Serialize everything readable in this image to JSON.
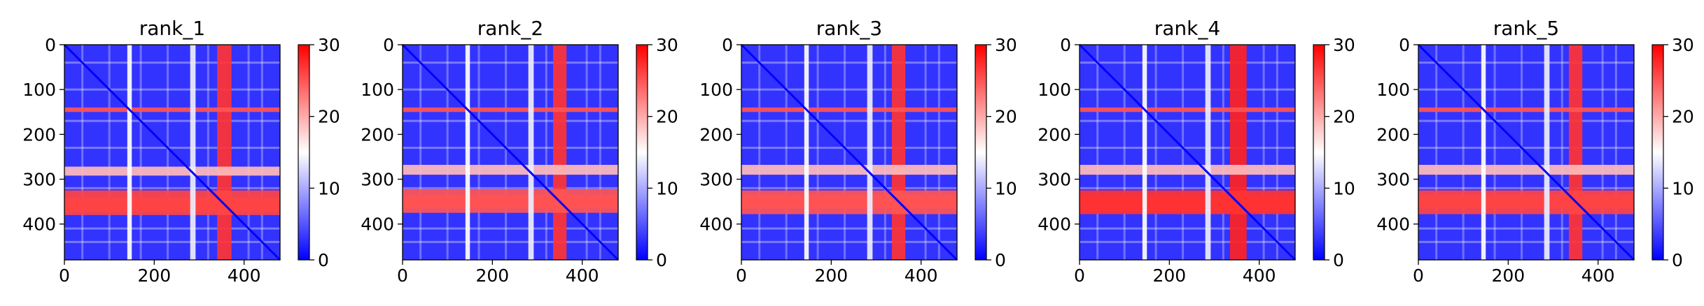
{
  "chart_data": [
    {
      "type": "heatmap",
      "title": "rank_1",
      "x_ticks": [
        0,
        200,
        400
      ],
      "y_ticks": [
        0,
        100,
        200,
        300,
        400
      ],
      "xlim": [
        0,
        480
      ],
      "ylim": [
        480,
        0
      ],
      "colorbar": {
        "range": [
          0,
          30
        ],
        "ticks": [
          0,
          10,
          20,
          30
        ],
        "colors": [
          "#0000ff",
          "#ffffff",
          "#ff0000"
        ]
      },
      "hot_bands": [
        {
          "axis": "both",
          "start": 340,
          "end": 372,
          "value": 27
        },
        {
          "axis": "row",
          "start": 325,
          "end": 380,
          "value": 26
        },
        {
          "axis": "row",
          "start": 140,
          "end": 150,
          "value": 25
        },
        {
          "axis": "row",
          "start": 272,
          "end": 292,
          "value": 19
        },
        {
          "axis": "col",
          "start": 140,
          "end": 150,
          "value": 15
        },
        {
          "axis": "col",
          "start": 280,
          "end": 292,
          "value": 14
        }
      ],
      "cool_value": 3
    },
    {
      "type": "heatmap",
      "title": "rank_2",
      "x_ticks": [
        0,
        200,
        400
      ],
      "y_ticks": [
        0,
        100,
        200,
        300,
        400
      ],
      "xlim": [
        0,
        480
      ],
      "ylim": [
        480,
        0
      ],
      "colorbar": {
        "range": [
          0,
          30
        ],
        "ticks": [
          0,
          10,
          20,
          30
        ],
        "colors": [
          "#0000ff",
          "#ffffff",
          "#ff0000"
        ]
      },
      "hot_bands": [
        {
          "axis": "both",
          "start": 335,
          "end": 365,
          "value": 27
        },
        {
          "axis": "row",
          "start": 322,
          "end": 375,
          "value": 25
        },
        {
          "axis": "row",
          "start": 140,
          "end": 150,
          "value": 25
        },
        {
          "axis": "row",
          "start": 268,
          "end": 290,
          "value": 19
        },
        {
          "axis": "col",
          "start": 140,
          "end": 150,
          "value": 15
        },
        {
          "axis": "col",
          "start": 280,
          "end": 292,
          "value": 14
        }
      ],
      "cool_value": 3
    },
    {
      "type": "heatmap",
      "title": "rank_3",
      "x_ticks": [
        0,
        200,
        400
      ],
      "y_ticks": [
        0,
        100,
        200,
        300,
        400
      ],
      "xlim": [
        0,
        480
      ],
      "ylim": [
        480,
        0
      ],
      "colorbar": {
        "range": [
          0,
          30
        ],
        "ticks": [
          0,
          10,
          20,
          30
        ],
        "colors": [
          "#0000ff",
          "#ffffff",
          "#ff0000"
        ]
      },
      "hot_bands": [
        {
          "axis": "both",
          "start": 335,
          "end": 365,
          "value": 27
        },
        {
          "axis": "row",
          "start": 325,
          "end": 378,
          "value": 25
        },
        {
          "axis": "row",
          "start": 140,
          "end": 150,
          "value": 25
        },
        {
          "axis": "row",
          "start": 268,
          "end": 290,
          "value": 19
        },
        {
          "axis": "col",
          "start": 140,
          "end": 150,
          "value": 15
        },
        {
          "axis": "col",
          "start": 280,
          "end": 292,
          "value": 14
        }
      ],
      "cool_value": 3
    },
    {
      "type": "heatmap",
      "title": "rank_4",
      "x_ticks": [
        0,
        200,
        400
      ],
      "y_ticks": [
        0,
        100,
        200,
        300,
        400
      ],
      "xlim": [
        0,
        480
      ],
      "ylim": [
        480,
        0
      ],
      "colorbar": {
        "range": [
          0,
          30
        ],
        "ticks": [
          0,
          10,
          20,
          30
        ],
        "colors": [
          "#0000ff",
          "#ffffff",
          "#ff0000"
        ]
      },
      "hot_bands": [
        {
          "axis": "both",
          "start": 335,
          "end": 372,
          "value": 28
        },
        {
          "axis": "row",
          "start": 325,
          "end": 378,
          "value": 27
        },
        {
          "axis": "row",
          "start": 140,
          "end": 150,
          "value": 25
        },
        {
          "axis": "row",
          "start": 268,
          "end": 290,
          "value": 19
        },
        {
          "axis": "col",
          "start": 140,
          "end": 150,
          "value": 15
        },
        {
          "axis": "col",
          "start": 280,
          "end": 292,
          "value": 14
        }
      ],
      "cool_value": 3
    },
    {
      "type": "heatmap",
      "title": "rank_5",
      "x_ticks": [
        0,
        200,
        400
      ],
      "y_ticks": [
        0,
        100,
        200,
        300,
        400
      ],
      "xlim": [
        0,
        480
      ],
      "ylim": [
        480,
        0
      ],
      "colorbar": {
        "range": [
          0,
          30
        ],
        "ticks": [
          0,
          10,
          20,
          30
        ],
        "colors": [
          "#0000ff",
          "#ffffff",
          "#ff0000"
        ]
      },
      "hot_bands": [
        {
          "axis": "both",
          "start": 335,
          "end": 365,
          "value": 27
        },
        {
          "axis": "row",
          "start": 325,
          "end": 378,
          "value": 26
        },
        {
          "axis": "row",
          "start": 140,
          "end": 150,
          "value": 25
        },
        {
          "axis": "row",
          "start": 268,
          "end": 290,
          "value": 19
        },
        {
          "axis": "col",
          "start": 140,
          "end": 150,
          "value": 15
        },
        {
          "axis": "col",
          "start": 280,
          "end": 292,
          "value": 14
        }
      ],
      "cool_value": 3
    }
  ]
}
